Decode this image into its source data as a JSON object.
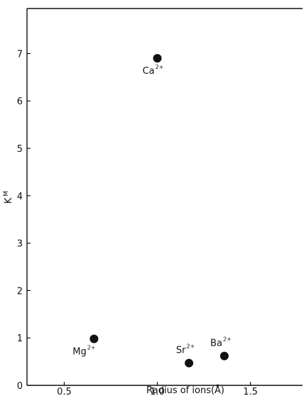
{
  "chart_data": {
    "type": "scatter",
    "xlabel": "Radius of ions(Å)",
    "ylabel": "K",
    "ylabel_sub": "M",
    "xlim": [
      0.3,
      1.78
    ],
    "ylim": [
      0,
      7.95
    ],
    "xticks": [
      0.5,
      1.0,
      1.5
    ],
    "xtick_labels": [
      "0.5",
      "1.0",
      "1.5"
    ],
    "yticks": [
      0,
      1,
      2,
      3,
      4,
      5,
      6,
      7
    ],
    "ytick_labels": [
      "0",
      "1",
      "2",
      "3",
      "4",
      "5",
      "6",
      "7"
    ],
    "grid": false,
    "points": [
      {
        "x": 0.66,
        "y": 0.98,
        "label": "Mg",
        "charge": "2+",
        "label_pos": "below-left"
      },
      {
        "x": 1.0,
        "y": 6.9,
        "label": "Ca",
        "charge": "2+",
        "label_pos": "below"
      },
      {
        "x": 1.17,
        "y": 0.47,
        "label": "Sr",
        "charge": "2+",
        "label_pos": "above"
      },
      {
        "x": 1.36,
        "y": 0.62,
        "label": "Ba",
        "charge": "2+",
        "label_pos": "above"
      }
    ]
  }
}
